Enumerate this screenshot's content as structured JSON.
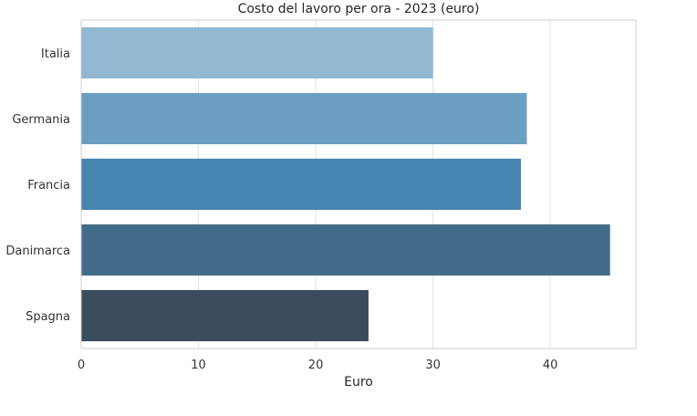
{
  "chart_data": {
    "type": "bar",
    "orientation": "horizontal",
    "title": "Costo del lavoro per ora - 2023 (euro)",
    "xlabel": "Euro",
    "ylabel": "",
    "categories": [
      "Italia",
      "Germania",
      "Francia",
      "Danimarca",
      "Spagna"
    ],
    "values": [
      30.0,
      38.0,
      37.5,
      45.1,
      24.5
    ],
    "colors": [
      "#91b8d0",
      "#6b9ec2",
      "#4785b1",
      "#436c8a",
      "#3b4d5c"
    ],
    "xlim": [
      0,
      47.3
    ],
    "xticks": [
      0,
      10,
      20,
      30,
      40
    ],
    "grid": true,
    "legend": "none"
  }
}
